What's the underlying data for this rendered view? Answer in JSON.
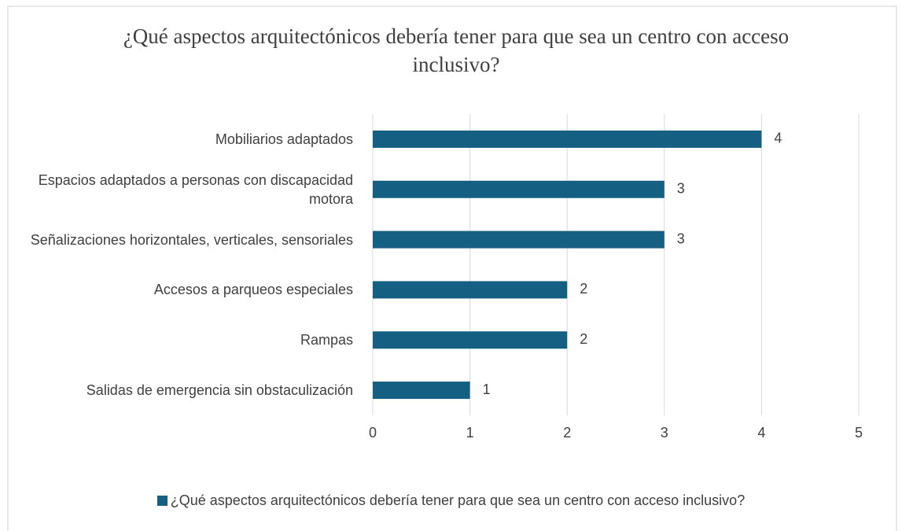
{
  "chart_data": {
    "type": "bar",
    "orientation": "horizontal",
    "title": "¿Qué aspectos arquitectónicos debería tener para que sea un centro con acceso inclusivo?",
    "categories": [
      "Mobiliarios adaptados",
      "Espacios adaptados a personas con discapacidad motora",
      "Señalizaciones horizontales, verticales, sensoriales",
      "Accesos a parqueos especiales",
      "Rampas",
      "Salidas de emergencia sin obstaculización"
    ],
    "series": [
      {
        "name": "¿Qué aspectos arquitectónicos debería tener para que sea un centro con acceso inclusivo?",
        "color": "#156082",
        "values": [
          4,
          3,
          3,
          2,
          2,
          1
        ]
      }
    ],
    "xlim": [
      0,
      5
    ],
    "xticks": [
      0,
      1,
      2,
      3,
      4,
      5
    ],
    "grid": true,
    "legend": "bottom"
  }
}
